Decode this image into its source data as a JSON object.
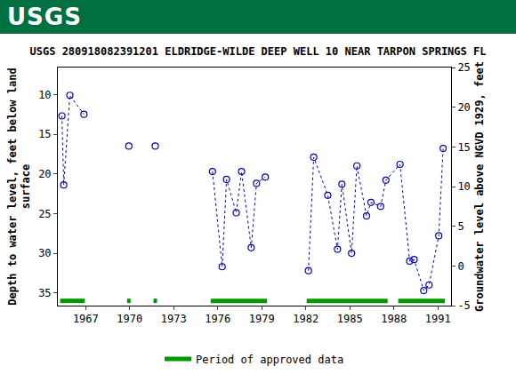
{
  "header": {
    "logo": "USGS"
  },
  "chart_data": {
    "type": "scatter",
    "title": "USGS 280918082391201 ELDRIDGE-WILDE DEEP WELL 10 NEAR TARPON SPRINGS FL",
    "y_label": "Depth to water level, feet below land\nsurface",
    "y2_label": "Groundwater level above NGVD 1929, feet",
    "xlim": [
      1965.1,
      1991.9
    ],
    "xticks": [
      1967,
      1970,
      1973,
      1976,
      1979,
      1982,
      1985,
      1988,
      1991
    ],
    "ylim": [
      36.6,
      6.6
    ],
    "yticks": [
      10,
      15,
      20,
      25,
      30,
      35
    ],
    "y2lim": [
      -5,
      25
    ],
    "y2ticks": [
      -5,
      0,
      5,
      10,
      15,
      20,
      25
    ],
    "grid": false,
    "legend": "bottom",
    "series": [
      {
        "color": "#0000cc",
        "marker": "circle-open",
        "line_style": "dot",
        "x": [
          1965.38,
          1965.5,
          1965.92,
          1966.88
        ],
        "values": [
          12.7,
          21.4,
          10.1,
          12.5
        ]
      },
      {
        "color": "#0000cc",
        "marker": "circle-open",
        "line_style": "dot",
        "x": [
          1969.94
        ],
        "values": [
          16.5
        ]
      },
      {
        "color": "#0000cc",
        "marker": "circle-open",
        "line_style": "dot",
        "x": [
          1971.74
        ],
        "values": [
          16.5
        ]
      },
      {
        "color": "#0000cc",
        "marker": "circle-open",
        "line_style": "dot",
        "x": [
          1975.64,
          1976.3,
          1976.6,
          1977.26,
          1977.62,
          1978.28,
          1978.64,
          1979.24
        ],
        "values": [
          19.7,
          31.7,
          20.7,
          24.9,
          19.7,
          29.3,
          21.2,
          20.4
        ]
      },
      {
        "color": "#0000cc",
        "marker": "circle-open",
        "line_style": "dot",
        "x": [
          1982.18,
          1982.54,
          1983.5,
          1984.16,
          1984.46,
          1985.12,
          1985.48,
          1986.14,
          1986.44,
          1987.1,
          1987.46,
          1988.42,
          1989.08,
          1989.38,
          1990.04,
          1990.4,
          1991.06,
          1991.36
        ],
        "values": [
          32.2,
          17.9,
          22.7,
          29.5,
          21.3,
          30.0,
          19.0,
          25.3,
          23.6,
          24.1,
          20.8,
          18.8,
          31.0,
          30.8,
          34.7,
          34.0,
          27.8,
          16.8
        ]
      }
    ],
    "approved_periods": {
      "name": "Period of approved data",
      "color": "#009900",
      "ranges": [
        [
          1965.26,
          1966.94
        ],
        [
          1969.82,
          1970.06
        ],
        [
          1971.62,
          1971.86
        ],
        [
          1975.52,
          1979.36
        ],
        [
          1982.06,
          1987.58
        ],
        [
          1988.3,
          1991.48
        ]
      ]
    }
  }
}
